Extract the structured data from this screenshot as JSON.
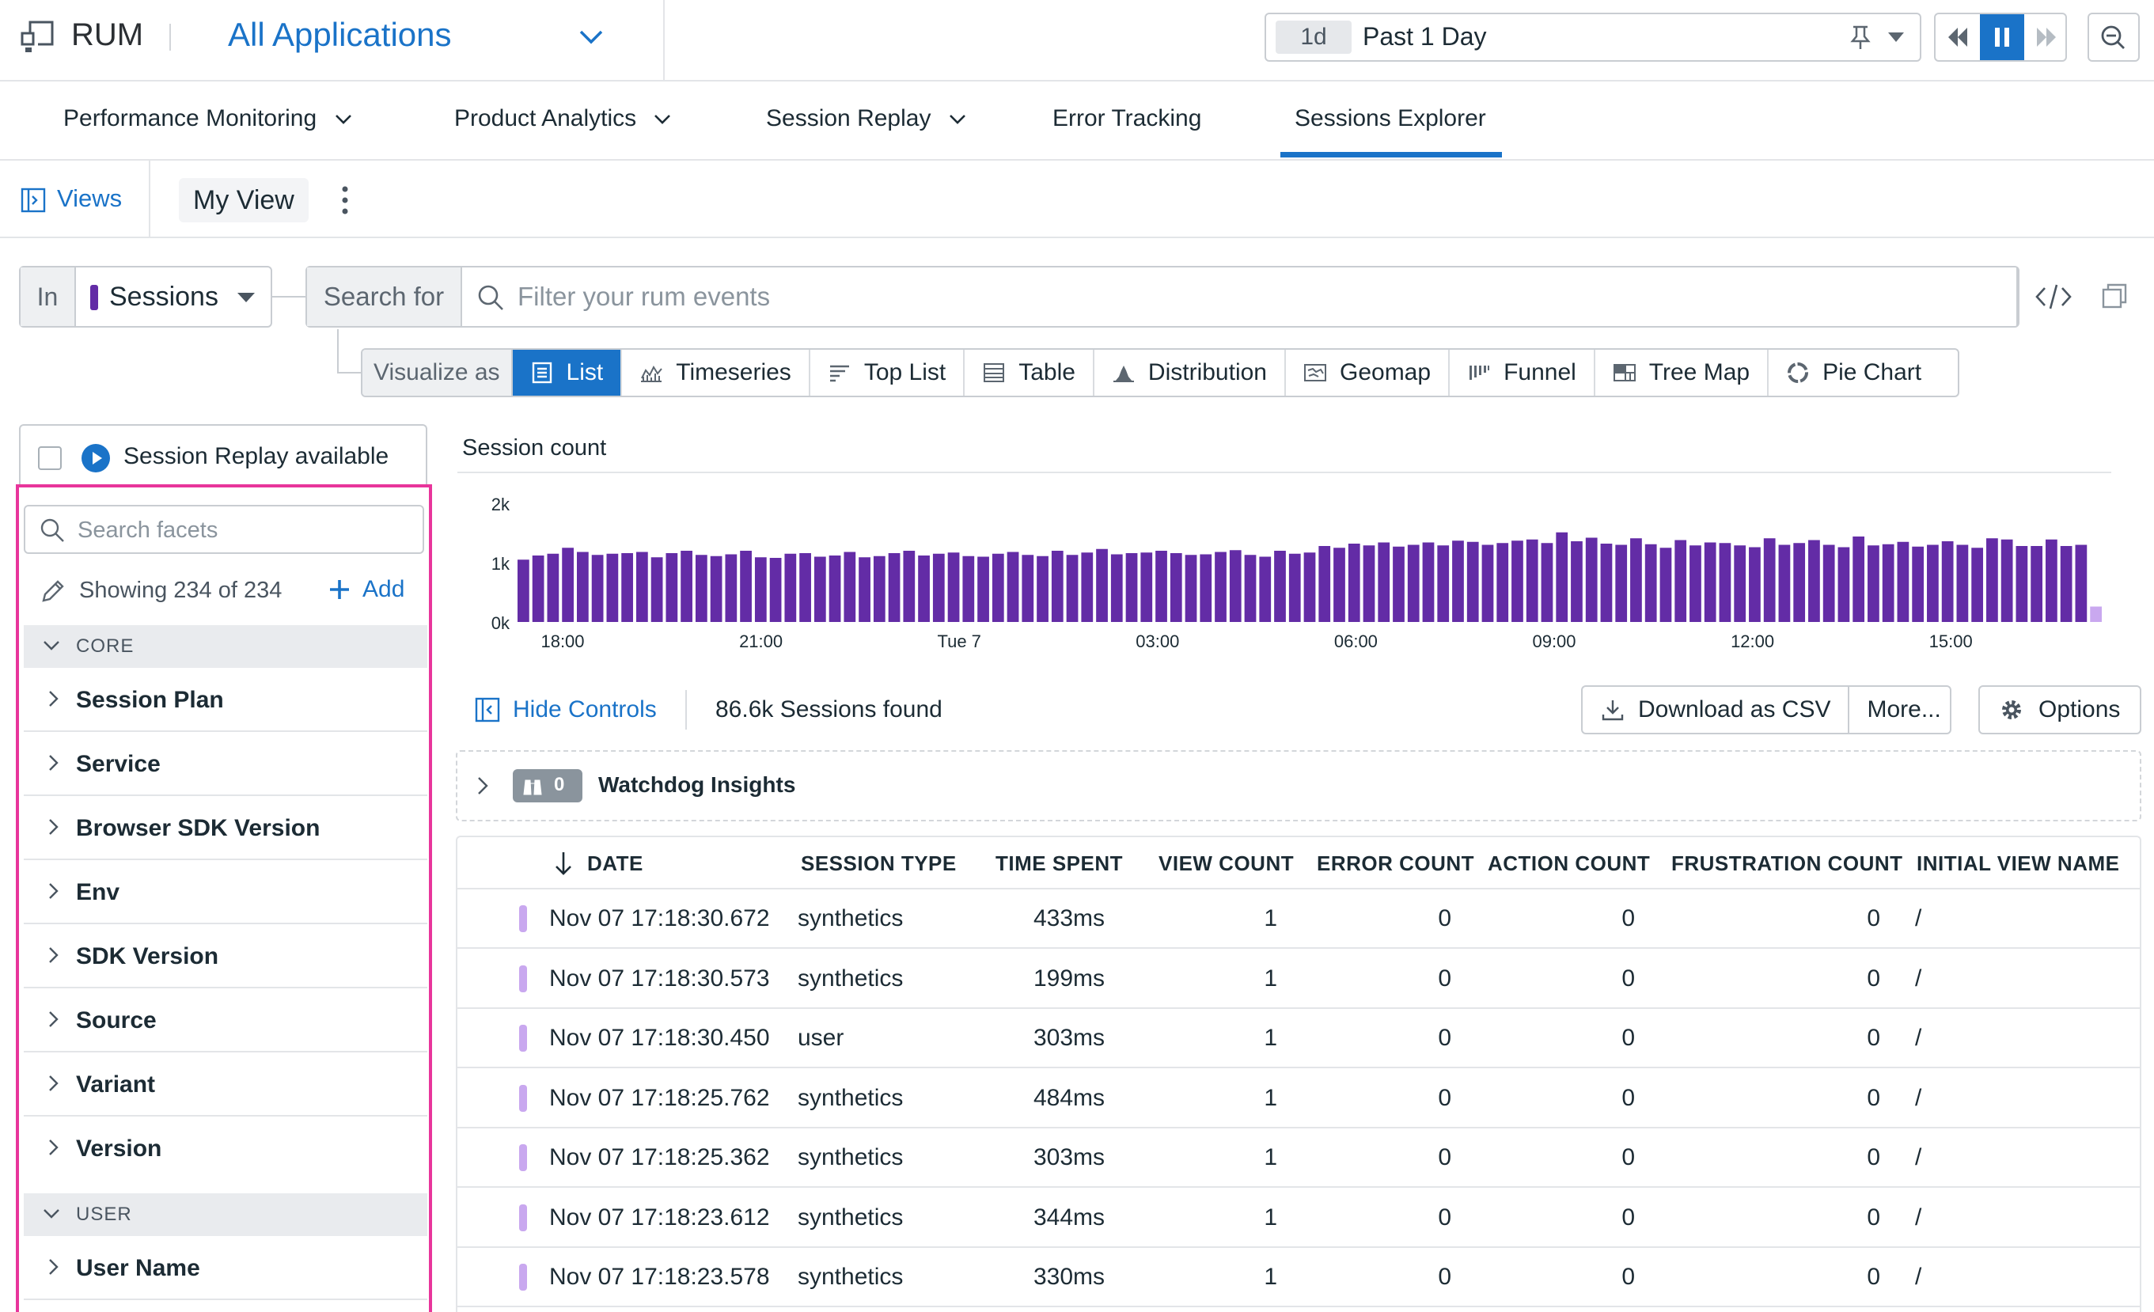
{
  "topbar": {
    "product": "RUM",
    "app_selector": "All Applications",
    "time_badge": "1d",
    "time_label": "Past 1 Day"
  },
  "nav": {
    "tabs": [
      {
        "label": "Performance Monitoring",
        "has_menu": true
      },
      {
        "label": "Product Analytics",
        "has_menu": true
      },
      {
        "label": "Session Replay",
        "has_menu": true
      },
      {
        "label": "Error Tracking",
        "has_menu": false
      },
      {
        "label": "Sessions Explorer",
        "has_menu": false,
        "active": true
      }
    ]
  },
  "views": {
    "views_label": "Views",
    "current_view": "My View"
  },
  "search": {
    "in_label": "In",
    "source": "Sessions",
    "search_for_label": "Search for",
    "placeholder": "Filter your rum events"
  },
  "visualize": {
    "label": "Visualize as",
    "options": [
      "List",
      "Timeseries",
      "Top List",
      "Table",
      "Distribution",
      "Geomap",
      "Funnel",
      "Tree Map",
      "Pie Chart"
    ],
    "active": "List"
  },
  "facets": {
    "replay_label": "Session Replay available",
    "search_placeholder": "Search facets",
    "showing": "Showing 234 of 234",
    "add_label": "Add",
    "groups": [
      {
        "name": "CORE",
        "items": [
          "Session Plan",
          "Service",
          "Browser SDK Version",
          "Env",
          "SDK Version",
          "Source",
          "Variant",
          "Version"
        ]
      },
      {
        "name": "USER",
        "items": [
          "User Name"
        ]
      }
    ]
  },
  "chart_data": {
    "type": "bar",
    "title": "Session count",
    "y_ticks": [
      "2k",
      "1k",
      "0k"
    ],
    "ylim": [
      0,
      2000
    ],
    "x_tick_labels": [
      "18:00",
      "21:00",
      "Tue 7",
      "03:00",
      "06:00",
      "09:00",
      "12:00",
      "15:00"
    ],
    "bar_color": "#632ca6",
    "partial_bar_color": "#c9a8ef",
    "values": [
      1050,
      1120,
      1150,
      1250,
      1180,
      1130,
      1150,
      1160,
      1180,
      1090,
      1160,
      1200,
      1130,
      1110,
      1140,
      1200,
      1090,
      1080,
      1150,
      1160,
      1100,
      1120,
      1180,
      1090,
      1110,
      1160,
      1200,
      1120,
      1150,
      1170,
      1110,
      1100,
      1150,
      1180,
      1130,
      1110,
      1200,
      1130,
      1170,
      1230,
      1140,
      1160,
      1170,
      1200,
      1160,
      1130,
      1140,
      1180,
      1210,
      1130,
      1100,
      1200,
      1150,
      1170,
      1280,
      1250,
      1320,
      1290,
      1340,
      1270,
      1300,
      1340,
      1290,
      1370,
      1350,
      1300,
      1330,
      1370,
      1390,
      1330,
      1510,
      1360,
      1420,
      1320,
      1300,
      1410,
      1310,
      1250,
      1380,
      1290,
      1340,
      1330,
      1290,
      1260,
      1410,
      1300,
      1330,
      1380,
      1300,
      1260,
      1440,
      1290,
      1310,
      1350,
      1270,
      1300,
      1360,
      1300,
      1250,
      1410,
      1390,
      1280,
      1280,
      1390,
      1280,
      1300
    ],
    "partial_last_value": 260
  },
  "controls": {
    "hide_controls": "Hide Controls",
    "found": "86.6k Sessions found",
    "download": "Download as CSV",
    "more": "More...",
    "options": "Options"
  },
  "watchdog": {
    "count": "0",
    "label": "Watchdog Insights"
  },
  "table": {
    "columns": [
      "DATE",
      "SESSION TYPE",
      "TIME SPENT",
      "VIEW COUNT",
      "ERROR COUNT",
      "ACTION COUNT",
      "FRUSTRATION COUNT",
      "INITIAL VIEW NAME"
    ],
    "rows": [
      {
        "date": "Nov 07 17:18:30.672",
        "type": "synthetics",
        "time": "433ms",
        "views": "1",
        "errors": "0",
        "actions": "0",
        "frustration": "0",
        "view_name": "/"
      },
      {
        "date": "Nov 07 17:18:30.573",
        "type": "synthetics",
        "time": "199ms",
        "views": "1",
        "errors": "0",
        "actions": "0",
        "frustration": "0",
        "view_name": "/"
      },
      {
        "date": "Nov 07 17:18:30.450",
        "type": "user",
        "time": "303ms",
        "views": "1",
        "errors": "0",
        "actions": "0",
        "frustration": "0",
        "view_name": "/"
      },
      {
        "date": "Nov 07 17:18:25.762",
        "type": "synthetics",
        "time": "484ms",
        "views": "1",
        "errors": "0",
        "actions": "0",
        "frustration": "0",
        "view_name": "/"
      },
      {
        "date": "Nov 07 17:18:25.362",
        "type": "synthetics",
        "time": "303ms",
        "views": "1",
        "errors": "0",
        "actions": "0",
        "frustration": "0",
        "view_name": "/"
      },
      {
        "date": "Nov 07 17:18:23.612",
        "type": "synthetics",
        "time": "344ms",
        "views": "1",
        "errors": "0",
        "actions": "0",
        "frustration": "0",
        "view_name": "/"
      },
      {
        "date": "Nov 07 17:18:23.578",
        "type": "synthetics",
        "time": "330ms",
        "views": "1",
        "errors": "0",
        "actions": "0",
        "frustration": "0",
        "view_name": "/"
      }
    ]
  }
}
